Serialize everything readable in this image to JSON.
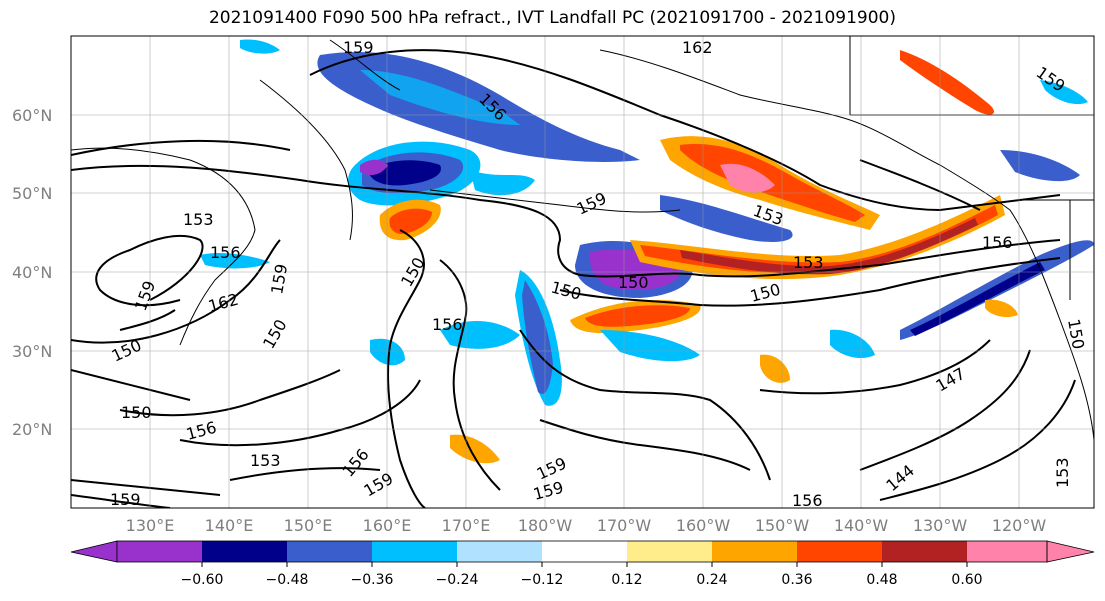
{
  "title": "2021091400 F090 500 hPa refract., IVT Landfall PC (2021091700 - 2021091900)",
  "map": {
    "lon_labels": [
      "130°E",
      "140°E",
      "150°E",
      "160°E",
      "170°E",
      "180°W",
      "170°W",
      "160°W",
      "150°W",
      "140°W",
      "130°W",
      "120°W"
    ],
    "lat_labels": [
      "60°N",
      "50°N",
      "40°N",
      "30°N",
      "20°N"
    ],
    "grid": true,
    "contour_labels": [
      {
        "text": "159"
      },
      {
        "text": "162"
      },
      {
        "text": "159"
      },
      {
        "text": "156"
      },
      {
        "text": "153"
      },
      {
        "text": "156"
      },
      {
        "text": "159"
      },
      {
        "text": "150"
      },
      {
        "text": "156"
      },
      {
        "text": "153"
      },
      {
        "text": "150"
      },
      {
        "text": "150"
      },
      {
        "text": "150"
      },
      {
        "text": "153"
      },
      {
        "text": "156"
      },
      {
        "text": "159"
      },
      {
        "text": "162"
      },
      {
        "text": "150"
      },
      {
        "text": "150"
      },
      {
        "text": "156"
      },
      {
        "text": "150"
      },
      {
        "text": "156"
      },
      {
        "text": "159"
      },
      {
        "text": "159"
      },
      {
        "text": "159"
      },
      {
        "text": "153"
      },
      {
        "text": "147"
      },
      {
        "text": "144"
      },
      {
        "text": "153"
      },
      {
        "text": "156"
      },
      {
        "text": "159"
      },
      {
        "text": "150"
      },
      {
        "text": "159"
      }
    ]
  },
  "colorbar": {
    "colors": [
      "#9932cc",
      "#00008b",
      "#3a5fcd",
      "#00bfff",
      "#b0e2ff",
      "#ffffff",
      "#ffec8b",
      "#ffa500",
      "#ff4500",
      "#b22222",
      "#ff82ab"
    ],
    "tick_labels": [
      "−0.60",
      "−0.48",
      "−0.36",
      "−0.24",
      "−0.12",
      "0.12",
      "0.24",
      "0.36",
      "0.48",
      "0.60"
    ]
  }
}
